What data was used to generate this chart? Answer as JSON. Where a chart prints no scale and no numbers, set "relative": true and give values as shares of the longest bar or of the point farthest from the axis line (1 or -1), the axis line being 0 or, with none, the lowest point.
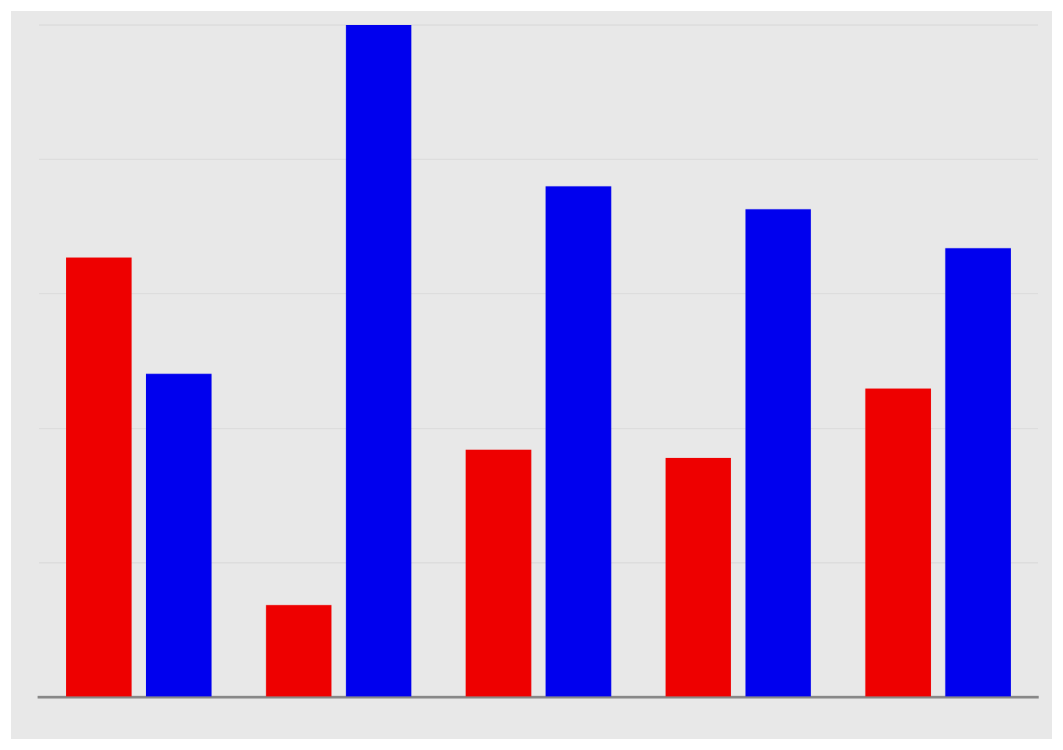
{
  "chart_data": {
    "type": "bar",
    "relative": true,
    "categories": [
      null,
      null,
      null,
      null,
      null
    ],
    "series": [
      {
        "color": "#ee0000",
        "values": [
          0.654,
          0.137,
          0.368,
          0.356,
          0.459
        ]
      },
      {
        "color": "#0000ee",
        "values": [
          0.481,
          1,
          0.76,
          0.726,
          0.668
        ]
      }
    ],
    "grid": "y",
    "legend": false
  }
}
